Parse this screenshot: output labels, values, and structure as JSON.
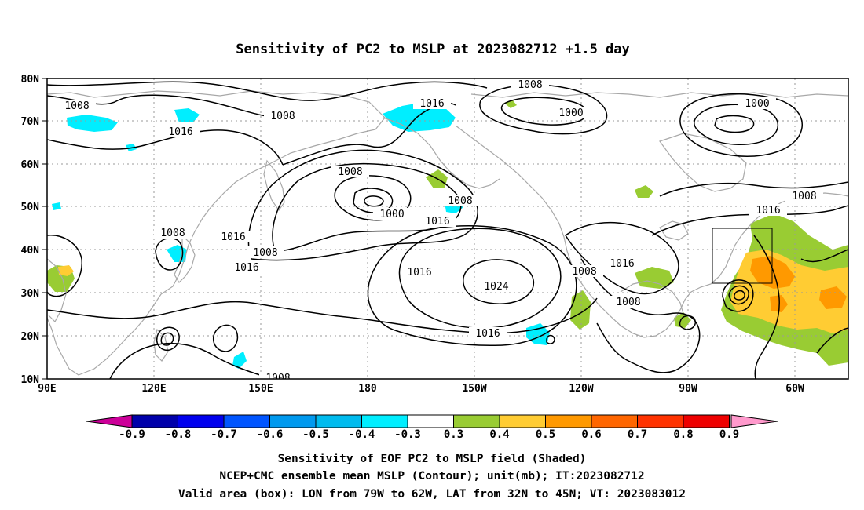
{
  "title": "Sensitivity of PC2 to MSLP at 2023082712 +1.5 day",
  "map": {
    "lat_labels": [
      "80N",
      "70N",
      "60N",
      "50N",
      "40N",
      "30N",
      "20N",
      "10N"
    ],
    "lon_labels": [
      "90E",
      "120E",
      "150E",
      "180",
      "150W",
      "120W",
      "90W",
      "60W"
    ],
    "contour_labels": [
      "1008",
      "1008",
      "1016",
      "1016",
      "1008",
      "1000",
      "1000",
      "1008",
      "1000",
      "1008",
      "1016",
      "1008",
      "1016",
      "1008",
      "1016",
      "1016",
      "1024",
      "1016",
      "1008",
      "1016",
      "1008",
      "1008",
      "1016",
      "1008"
    ],
    "valid_box": {
      "lon_from": "79W",
      "lon_to": "62W",
      "lat_from": "32N",
      "lat_to": "45N"
    }
  },
  "colorbar": {
    "colors": [
      "#cc0099",
      "#0000aa",
      "#0000ee",
      "#0055ff",
      "#0099ee",
      "#00bbee",
      "#00eeff",
      "#ffffff",
      "#99cc33",
      "#ffcc33",
      "#ff9900",
      "#ff6600",
      "#ff3300",
      "#ee0000",
      "#ff99cc"
    ],
    "labels": [
      "-0.9",
      "-0.8",
      "-0.7",
      "-0.6",
      "-0.5",
      "-0.4",
      "-0.3",
      "0.3",
      "0.4",
      "0.5",
      "0.6",
      "0.7",
      "0.8",
      "0.9"
    ]
  },
  "caption": {
    "line1": "Sensitivity of EOF PC2 to MSLP field (Shaded)",
    "line2": "NCEP+CMC ensemble mean MSLP (Contour); unit(mb); IT:2023082712",
    "line3": "Valid area (box): LON from 79W to 62W, LAT from 32N to 45N; VT: 2023083012"
  }
}
